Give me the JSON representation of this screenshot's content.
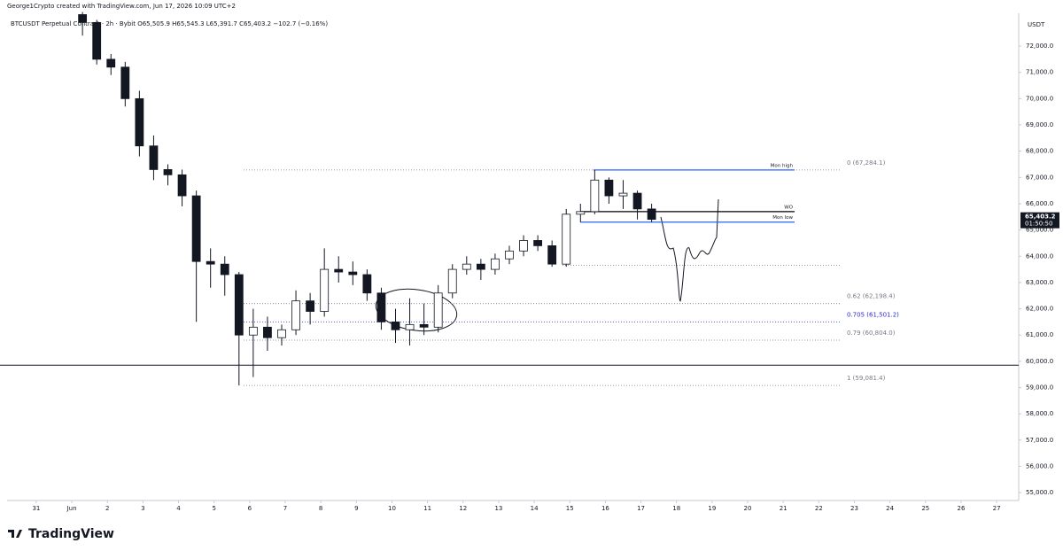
{
  "chart_data": {
    "type": "candlestick",
    "title": "George1Crypto created with TradingView.com, Jun 17, 2026 10:09 UTC+2",
    "subtitle": "BTCUSDT Perpetual Contract · 2h · Bybit  O65,505.9 H65,545.3 L65,391.7 C65,403.2 −102.7 (−0.16%)",
    "y_unit": "USDT",
    "watermark": "TradingView",
    "up_color": "#ffffff",
    "down_color": "#131722",
    "xlim": [
      -0.82,
      27.62
    ],
    "xticks": [
      {
        "value": 0,
        "label": "31"
      },
      {
        "value": 1,
        "label": "Jun"
      },
      2,
      3,
      4,
      5,
      6,
      7,
      8,
      9,
      10,
      11,
      12,
      13,
      14,
      15,
      16,
      17,
      18,
      19,
      20,
      21,
      22,
      23,
      24,
      25,
      26,
      27
    ],
    "ylim": [
      54700,
      73250
    ],
    "yticks": [
      {
        "value": 55000,
        "label": "55,000.0"
      },
      {
        "value": 56000,
        "label": "56,000.0"
      },
      {
        "value": 57000,
        "label": "57,000.0"
      },
      {
        "value": 58000,
        "label": "58,000.0"
      },
      {
        "value": 59000,
        "label": "59,000.0"
      },
      {
        "value": 60000,
        "label": "60,000.0"
      },
      {
        "value": 61000,
        "label": "61,000.0"
      },
      {
        "value": 62000,
        "label": "62,000.0"
      },
      {
        "value": 63000,
        "label": "63,000.0"
      },
      {
        "value": 64000,
        "label": "64,000.0"
      },
      {
        "value": 65000,
        "label": "65,000.0"
      },
      {
        "value": 66000,
        "label": "66,000.0"
      },
      {
        "value": 67000,
        "label": "67,000.0"
      },
      {
        "value": 68000,
        "label": "68,000.0"
      },
      {
        "value": 69000,
        "label": "69,000.0"
      },
      {
        "value": 70000,
        "label": "70,000.0"
      },
      {
        "value": 71000,
        "label": "71,000.0"
      },
      {
        "value": 72000,
        "label": "72,000.0"
      }
    ],
    "x": [
      1.3,
      1.7,
      2.1,
      2.5,
      2.9,
      3.3,
      3.7,
      4.1,
      4.5,
      4.9,
      5.3,
      5.7,
      6.1,
      6.5,
      6.9,
      7.3,
      7.7,
      8.1,
      8.5,
      8.9,
      9.3,
      9.7,
      10.1,
      10.5,
      10.9,
      11.3,
      11.7,
      12.1,
      12.5,
      12.9,
      13.3,
      13.7,
      14.1,
      14.5,
      14.9,
      15.3,
      15.7,
      16.1,
      16.5,
      16.9,
      17.3
    ],
    "open": [
      73200,
      72900,
      71500,
      71200,
      70000,
      68200,
      67300,
      67100,
      66300,
      63800,
      63700,
      63300,
      61000,
      61300,
      60900,
      61200,
      62300,
      61900,
      63500,
      63400,
      63300,
      62600,
      61500,
      61200,
      61400,
      61300,
      62600,
      63500,
      63700,
      63500,
      63900,
      64200,
      64600,
      64400,
      63700,
      65600,
      65700,
      66900,
      66300,
      66400,
      65800
    ],
    "high": [
      73300,
      73000,
      71700,
      71400,
      70300,
      68600,
      67500,
      67300,
      66500,
      64300,
      64000,
      63400,
      62000,
      61700,
      61400,
      62700,
      62600,
      64300,
      64000,
      63800,
      63500,
      62800,
      62000,
      62400,
      62200,
      62900,
      63700,
      64000,
      63900,
      64100,
      64400,
      64800,
      64800,
      64600,
      65800,
      66000,
      67284.1,
      67000,
      66900,
      66500,
      66000
    ],
    "low": [
      72400,
      71300,
      70900,
      69700,
      67800,
      66900,
      66700,
      65900,
      61500,
      62800,
      62500,
      59081.4,
      59400,
      60400,
      60600,
      61000,
      61400,
      61700,
      63000,
      62900,
      62300,
      61200,
      60700,
      60600,
      61000,
      61100,
      62400,
      63300,
      63100,
      63300,
      63700,
      64000,
      64200,
      63600,
      63600,
      65300,
      65600,
      66000,
      65800,
      65400,
      65300
    ],
    "close": [
      72900,
      71500,
      71200,
      70000,
      68200,
      67300,
      67100,
      66300,
      63800,
      63700,
      63300,
      61000,
      61300,
      60900,
      61200,
      62300,
      61900,
      63500,
      63400,
      63300,
      62600,
      61500,
      61200,
      61400,
      61300,
      62600,
      63500,
      63700,
      63500,
      63900,
      64200,
      64600,
      64400,
      63700,
      65600,
      65700,
      66900,
      66300,
      66400,
      65800,
      65403.2
    ],
    "last_price": {
      "value": 65403.2,
      "label": "65,403.2"
    },
    "countdown": "01:50:50",
    "fib_levels": [
      {
        "value": 67284.1,
        "label": "0 (67,284.1)",
        "color": "#787b86"
      },
      {
        "value": 62198.4,
        "label": "0.62 (62,198.4)",
        "color": "#787b86"
      },
      {
        "value": 61501.2,
        "label": "0.705 (61,501.2)",
        "color": "#2a2ad0"
      },
      {
        "value": 60804,
        "label": "0.79 (60,804.0)",
        "color": "#787b86"
      },
      {
        "value": 59081.4,
        "label": "1 (59,081.4)",
        "color": "#787b86"
      }
    ],
    "key_levels": [
      {
        "name": "Mon high",
        "value": 67284.1,
        "color": "#2962ff"
      },
      {
        "name": "WO",
        "value": 65700,
        "color": "#000000"
      },
      {
        "name": "Mon low",
        "value": 65300,
        "color": "#2962ff"
      }
    ],
    "dotted_levels": [
      63650
    ],
    "horizontal_lines": [
      59850
    ]
  }
}
